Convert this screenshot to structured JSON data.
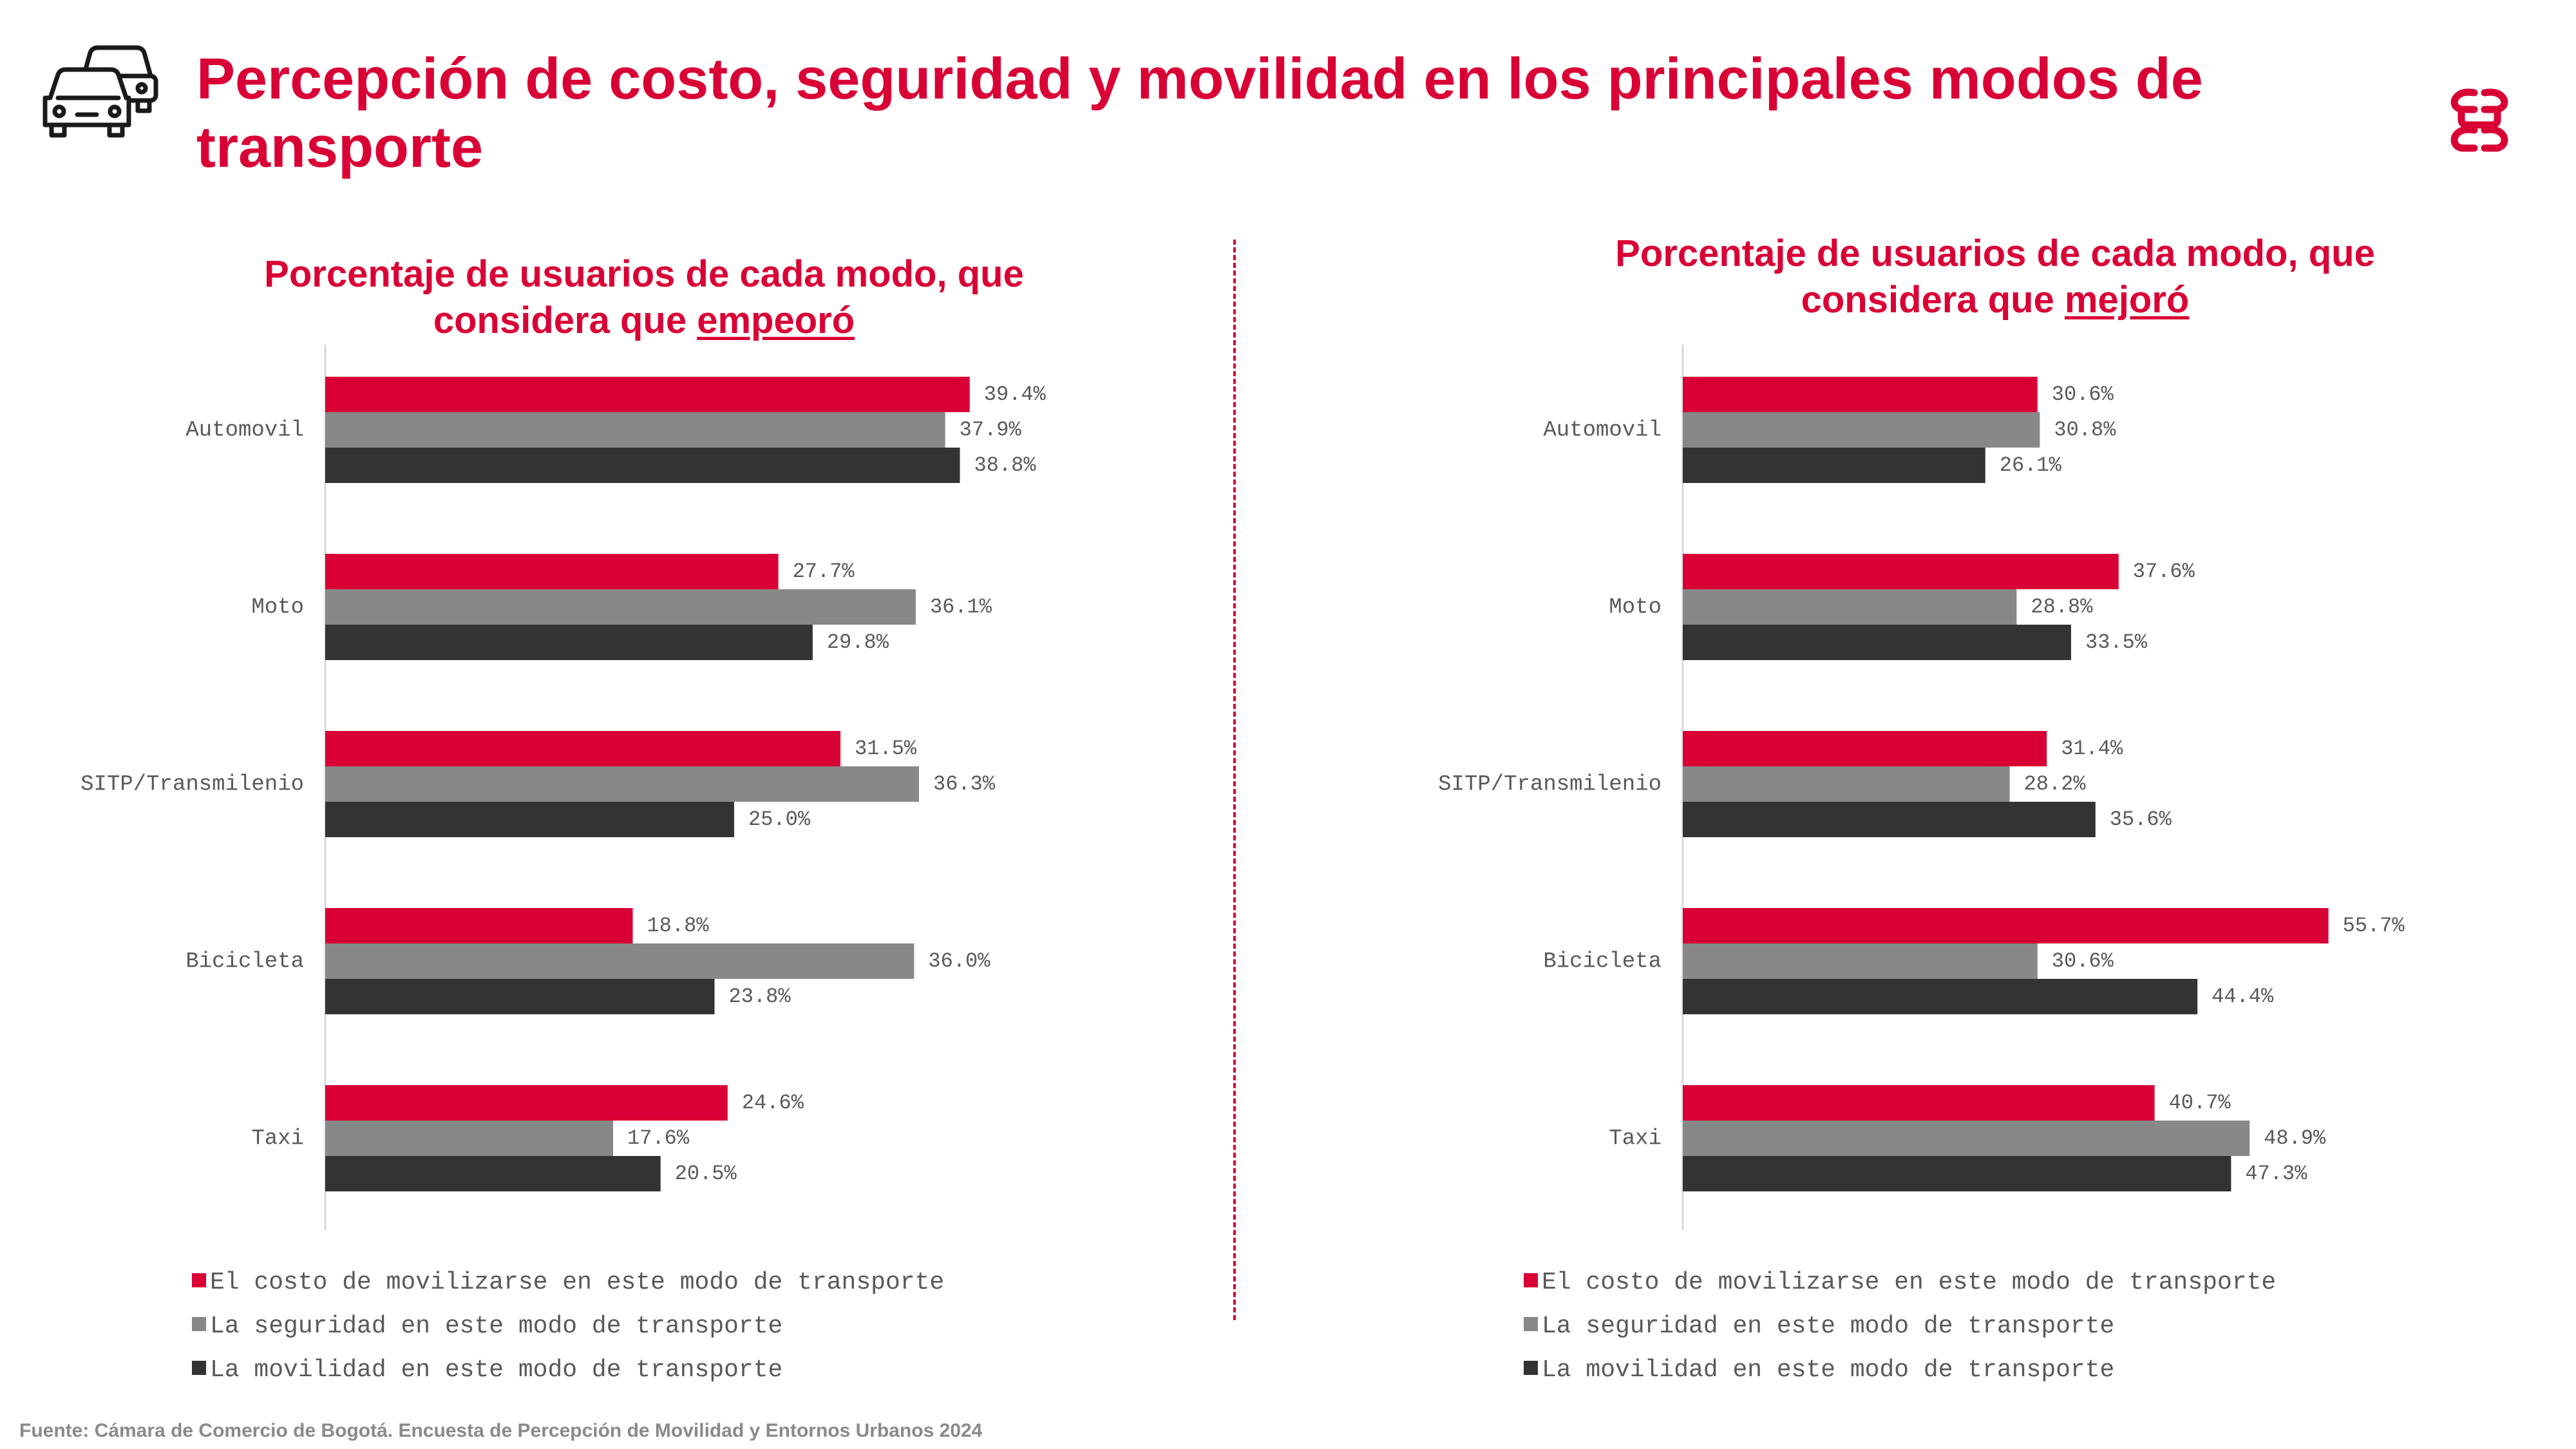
{
  "page": {
    "title": "Percepción de costo, seguridad y movilidad en los principales modos de transporte",
    "source": "Fuente: Cámara de Comercio de Bogotá. Encuesta de Percepción de Movilidad y Entornos Urbanos 2024"
  },
  "colors": {
    "accent": "#d90035",
    "cost": "#d90035",
    "security": "#888888",
    "mobility": "#333333"
  },
  "icons": {
    "header": "cars-icon",
    "brand": "ccb-logo-icon"
  },
  "legend": {
    "cost": "El costo de movilizarse en este modo de transporte",
    "security": "La seguridad en este modo de transporte",
    "mobility": "La movilidad en este modo de transporte"
  },
  "charts": [
    {
      "title_prefix": "Porcentaje de usuarios de cada modo, que considera que",
      "title_emphasis": "empeoró"
    },
    {
      "title_prefix": "Porcentaje de usuarios de cada modo, que considera que",
      "title_emphasis": "mejoró"
    }
  ],
  "chart_data": [
    {
      "type": "bar",
      "orientation": "horizontal",
      "title": "Porcentaje de usuarios de cada modo, que considera que empeoró",
      "categories": [
        "Automovil",
        "Moto",
        "SITP/Transmilenio",
        "Bicicleta",
        "Taxi"
      ],
      "series": [
        {
          "name": "El costo de movilizarse en este modo de transporte",
          "values": [
            39.4,
            27.7,
            31.5,
            18.8,
            24.6
          ],
          "labels": [
            "39.4%",
            "27.7%",
            "31.5%",
            "18.8%",
            "24.6%"
          ]
        },
        {
          "name": "La seguridad en este modo de transporte",
          "values": [
            37.9,
            36.1,
            36.3,
            36.0,
            17.6
          ],
          "labels": [
            "37.9%",
            "36.1%",
            "36.3%",
            "36.0%",
            "17.6%"
          ]
        },
        {
          "name": "La movilidad en este modo de transporte",
          "values": [
            38.8,
            29.8,
            25.0,
            23.8,
            20.5
          ],
          "labels": [
            "38.8%",
            "29.8%",
            "25.0%",
            "23.8%",
            "20.5%"
          ]
        }
      ],
      "xlim": [
        0,
        60
      ],
      "grid": false,
      "legend": "bottom-left"
    },
    {
      "type": "bar",
      "orientation": "horizontal",
      "title": "Porcentaje de usuarios de cada modo, que considera que mejoró",
      "categories": [
        "Automovil",
        "Moto",
        "SITP/Transmilenio",
        "Bicicleta",
        "Taxi"
      ],
      "series": [
        {
          "name": "El costo de movilizarse en este modo de transporte",
          "values": [
            30.6,
            37.6,
            31.4,
            55.7,
            40.7
          ],
          "labels": [
            "30.6%",
            "37.6%",
            "31.4%",
            "55.7%",
            "40.7%"
          ]
        },
        {
          "name": "La seguridad en este modo de transporte",
          "values": [
            30.8,
            28.8,
            28.2,
            30.6,
            48.9
          ],
          "labels": [
            "30.8%",
            "28.8%",
            "28.2%",
            "30.6%",
            "48.9%"
          ]
        },
        {
          "name": "La movilidad en este modo de transporte",
          "values": [
            26.1,
            33.5,
            35.6,
            44.4,
            47.3
          ],
          "labels": [
            "26.1%",
            "33.5%",
            "35.6%",
            "44.4%",
            "47.3%"
          ]
        }
      ],
      "xlim": [
        0,
        60
      ],
      "grid": false,
      "legend": "bottom-left"
    }
  ]
}
